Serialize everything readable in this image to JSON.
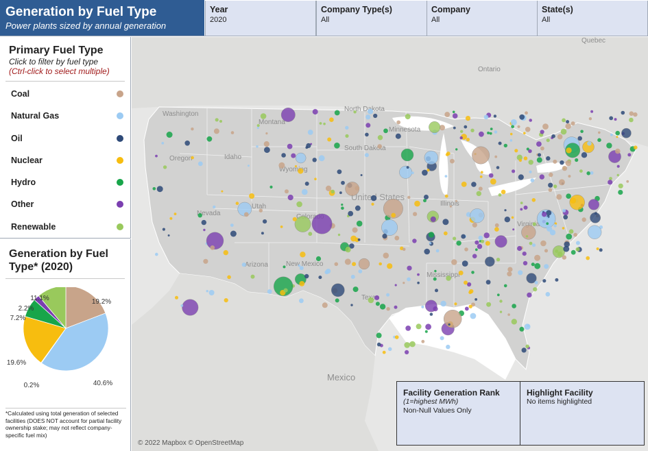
{
  "header": {
    "title": "Generation by Fuel Type",
    "subtitle": "Power plants sized by annual generation",
    "filters": [
      {
        "label": "Year",
        "value": "2020"
      },
      {
        "label": "Company Type(s)",
        "value": "All"
      },
      {
        "label": "Company",
        "value": "All"
      },
      {
        "label": "State(s)",
        "value": "All"
      }
    ]
  },
  "legend": {
    "title": "Primary Fuel Type",
    "hint": "Click to filter by fuel type",
    "hint2": "(Ctrl-click to select multiple)",
    "items": [
      {
        "label": "Coal",
        "color": "#c8a48a"
      },
      {
        "label": "Natural Gas",
        "color": "#9ccbf3"
      },
      {
        "label": "Oil",
        "color": "#2e4a78"
      },
      {
        "label": "Nuclear",
        "color": "#f7bd0f"
      },
      {
        "label": "Hydro",
        "color": "#18a54a"
      },
      {
        "label": "Other",
        "color": "#7b3fb0"
      },
      {
        "label": "Renewable",
        "color": "#99c95c"
      }
    ]
  },
  "pie": {
    "title": "Generation by Fuel Type* (2020)",
    "footnote": "*Calculated using total generation of selected facilities (DOES NOT account for partial facility ownership stake; may not reflect company-specific fuel mix)"
  },
  "chart_data": {
    "type": "pie",
    "title": "Generation by Fuel Type* (2020)",
    "slices": [
      {
        "name": "Coal",
        "value": 19.2,
        "label": "19.2%",
        "color": "#c8a48a"
      },
      {
        "name": "Natural Gas",
        "value": 40.6,
        "label": "40.6%",
        "color": "#9ccbf3"
      },
      {
        "name": "Oil",
        "value": 0.2,
        "label": "0.2%",
        "color": "#2e4a78"
      },
      {
        "name": "Nuclear",
        "value": 19.6,
        "label": "19.6%",
        "color": "#f7bd0f"
      },
      {
        "name": "Hydro",
        "value": 7.2,
        "label": "7.2%",
        "color": "#18a54a"
      },
      {
        "name": "Other",
        "value": 2.2,
        "label": "2.2%",
        "color": "#7b3fb0"
      },
      {
        "name": "Renewable",
        "value": 11.1,
        "label": "11.1%",
        "color": "#99c95c"
      }
    ]
  },
  "map": {
    "attribution": "© 2022 Mapbox © OpenStreetMap",
    "labels": [
      "Quebec",
      "Ontario",
      "North Dakota",
      "Minnesota",
      "South Dakota",
      "Washington",
      "Montana",
      "Oregon",
      "Idaho",
      "Wyoming",
      "Nevada",
      "Utah",
      "Colorado",
      "United States",
      "Arizona",
      "New Mexico",
      "Texas",
      "Mississippi",
      "Illinois",
      "Virginia",
      "Mexico"
    ]
  },
  "rank_box": {
    "title": "Facility Generation Rank",
    "subtitle": "(1=highest MWh)",
    "text": "Non-Null Values Only"
  },
  "highlight_box": {
    "title": "Highlight Facility",
    "text": "No items highlighted"
  }
}
